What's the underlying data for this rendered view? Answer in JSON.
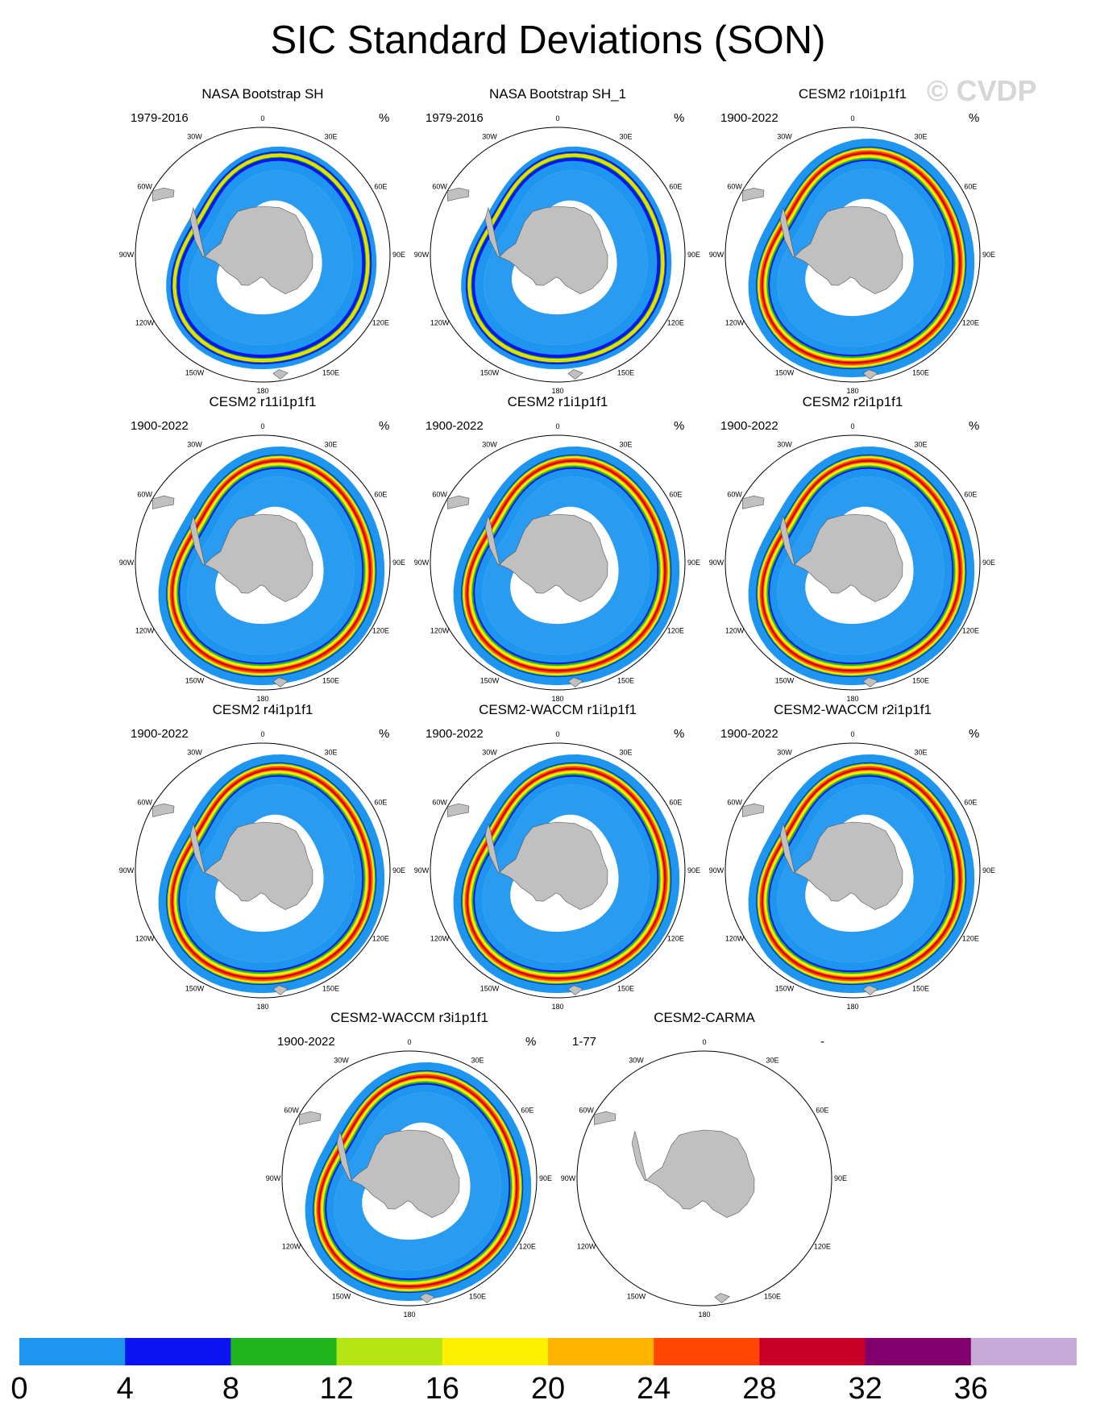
{
  "title": "SIC Standard Deviations (SON)",
  "watermark": "© CVDP",
  "units": "%",
  "lon_labels": [
    "0",
    "30E",
    "60E",
    "90E",
    "120E",
    "150E",
    "180",
    "150W",
    "120W",
    "90W",
    "60W",
    "30W"
  ],
  "chart_data": {
    "type": "heatmap",
    "projection": "south-polar stereographic",
    "variable": "Sea ice concentration standard deviation",
    "season": "SON",
    "panels": [
      {
        "title": "NASA Bootstrap SH",
        "years": "1979-2016",
        "units": "%",
        "style": "obs",
        "has_data": true
      },
      {
        "title": "NASA Bootstrap SH_1",
        "years": "1979-2016",
        "units": "%",
        "style": "obs",
        "has_data": true
      },
      {
        "title": "CESM2 r10i1p1f1",
        "years": "1900-2022",
        "units": "%",
        "style": "model",
        "has_data": true
      },
      {
        "title": "CESM2 r11i1p1f1",
        "years": "1900-2022",
        "units": "%",
        "style": "model",
        "has_data": true
      },
      {
        "title": "CESM2 r1i1p1f1",
        "years": "1900-2022",
        "units": "%",
        "style": "model",
        "has_data": true
      },
      {
        "title": "CESM2 r2i1p1f1",
        "years": "1900-2022",
        "units": "%",
        "style": "model",
        "has_data": true
      },
      {
        "title": "CESM2 r4i1p1f1",
        "years": "1900-2022",
        "units": "%",
        "style": "model",
        "has_data": true
      },
      {
        "title": "CESM2-WACCM r1i1p1f1",
        "years": "1900-2022",
        "units": "%",
        "style": "model",
        "has_data": true
      },
      {
        "title": "CESM2-WACCM r2i1p1f1",
        "years": "1900-2022",
        "units": "%",
        "style": "model",
        "has_data": true
      },
      {
        "title": "CESM2-WACCM r3i1p1f1",
        "years": "1900-2022",
        "units": "%",
        "style": "model",
        "has_data": true
      },
      {
        "title": "CESM2-CARMA",
        "years": "1-77",
        "units": "-",
        "style": "empty",
        "has_data": false
      }
    ],
    "colorbar": {
      "levels": [
        0,
        4,
        8,
        12,
        16,
        20,
        24,
        28,
        32,
        36
      ],
      "tick_labels": [
        "0",
        "4",
        "8",
        "12",
        "16",
        "20",
        "24",
        "28",
        "32",
        "36"
      ],
      "colors": [
        "#1e96f0",
        "#0a14f0",
        "#22b41e",
        "#b4e614",
        "#fff000",
        "#ffb400",
        "#ff4600",
        "#c80028",
        "#82006e",
        "#c8aad8"
      ]
    }
  }
}
